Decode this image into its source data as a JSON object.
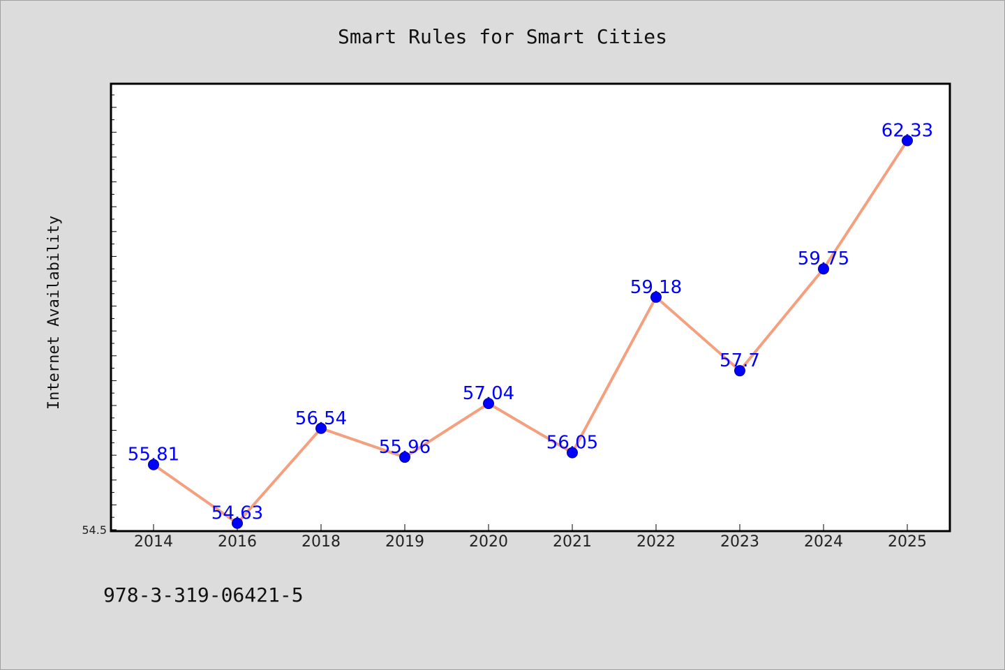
{
  "chart_data": {
    "type": "line",
    "title": "Smart Rules for Smart Cities",
    "xlabel": "",
    "ylabel": "Internet Availability",
    "categories": [
      "2014",
      "2016",
      "2018",
      "2019",
      "2020",
      "2021",
      "2022",
      "2023",
      "2024",
      "2025"
    ],
    "series": [
      {
        "values": [
          55.81,
          54.63,
          56.54,
          55.96,
          57.04,
          56.05,
          59.18,
          57.7,
          59.75,
          62.33
        ],
        "line_color": "#f4a07e",
        "marker_color": "#0000ff"
      }
    ],
    "data_labels": [
      "55.81",
      "54.63",
      "56.54",
      "55.96",
      "57.04",
      "56.05",
      "59.18",
      "57.7",
      "59.75",
      "62.33"
    ],
    "y_tick_labels": [
      "54.5"
    ],
    "ylim": [
      54.5,
      63.5
    ],
    "grid": false,
    "legend": "none"
  },
  "footer": {
    "isbn": "978-3-319-06421-5"
  }
}
